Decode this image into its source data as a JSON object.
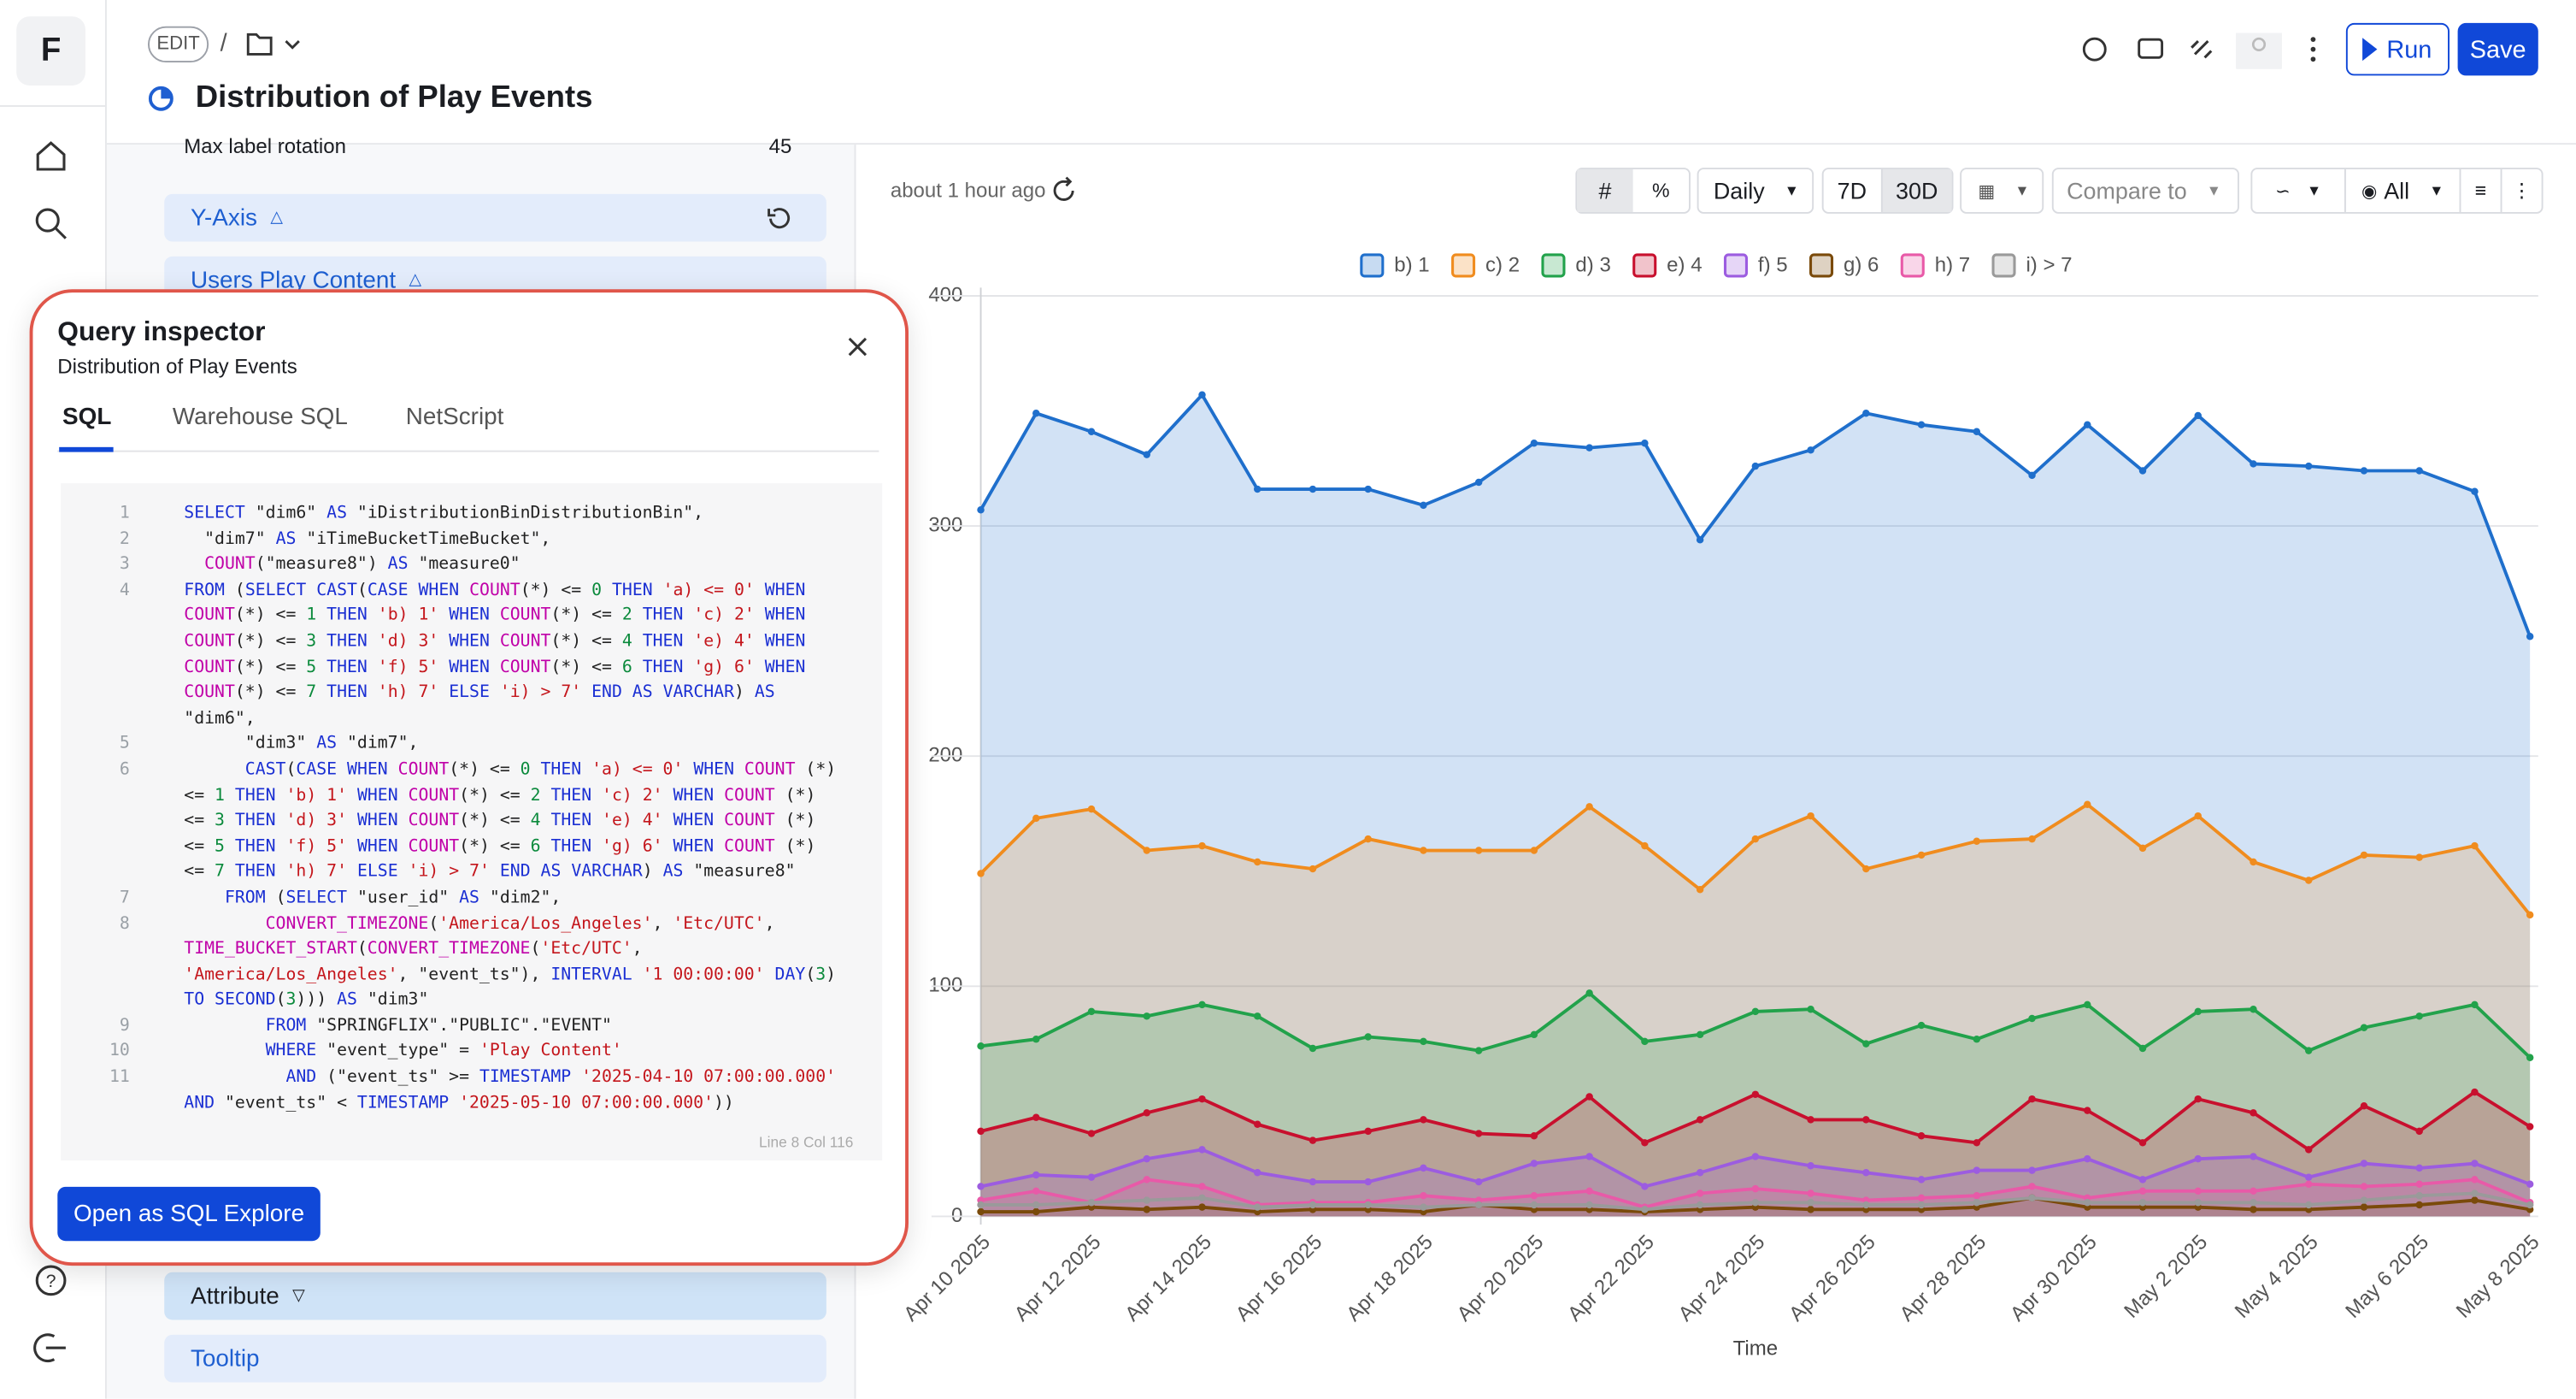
{
  "sidebar": {
    "logo": "F"
  },
  "header": {
    "mode": "EDIT",
    "separator": "/",
    "title": "Distribution of Play Events",
    "run": "Run",
    "save": "Save"
  },
  "panel": {
    "rotation_label": "Max label rotation",
    "rotation_value": 45,
    "sections": [
      "Y-Axis",
      "Users Play Content",
      "Attribute",
      "Tooltip"
    ]
  },
  "toolbar": {
    "updated": "about 1 hour ago",
    "granularity": "Daily",
    "ranges": [
      "7D",
      "30D"
    ],
    "compare": "Compare to",
    "visibility": "All"
  },
  "query_inspector": {
    "title": "Query inspector",
    "subtitle": "Distribution of Play Events",
    "tabs": [
      "SQL",
      "Warehouse SQL",
      "NetScript"
    ],
    "code": [
      {
        "line": 1,
        "text": "SELECT \"dim6\" AS \"iDistributionBinDistributionBin\","
      },
      {
        "line": 2,
        "text": "  \"dim7\" AS \"iTimeBucketTimeBucket\","
      },
      {
        "line": 3,
        "text": "  COUNT(\"measure8\") AS \"measure0\""
      },
      {
        "line": 4,
        "text": "FROM (SELECT CAST(CASE WHEN COUNT(*) <= 0 THEN 'a) <= 0' WHEN COUNT(*) <= 1 THEN 'b) 1' WHEN COUNT(*) <= 2 THEN 'c) 2' WHEN COUNT(*) <= 3 THEN 'd) 3' WHEN COUNT(*) <= 4 THEN 'e) 4' WHEN COUNT(*) <= 5 THEN 'f) 5' WHEN COUNT(*) <= 6 THEN 'g) 6' WHEN COUNT(*) <= 7 THEN 'h) 7' ELSE 'i) > 7' END AS VARCHAR) AS \"dim6\","
      },
      {
        "line": 5,
        "text": "      \"dim3\" AS \"dim7\","
      },
      {
        "line": 6,
        "text": "      CAST(CASE WHEN COUNT(*) <= 0 THEN 'a) <= 0' WHEN COUNT (*) <= 1 THEN 'b) 1' WHEN COUNT(*) <= 2 THEN 'c) 2' WHEN COUNT (*) <= 3 THEN 'd) 3' WHEN COUNT(*) <= 4 THEN 'e) 4' WHEN COUNT (*) <= 5 THEN 'f) 5' WHEN COUNT(*) <= 6 THEN 'g) 6' WHEN COUNT (*) <= 7 THEN 'h) 7' ELSE 'i) > 7' END AS VARCHAR) AS \"measure8\""
      },
      {
        "line": 7,
        "text": "    FROM (SELECT \"user_id\" AS \"dim2\","
      },
      {
        "line": 8,
        "text": "        CONVERT_TIMEZONE('America/Los_Angeles', 'Etc/UTC', TIME_BUCKET_START(CONVERT_TIMEZONE('Etc/UTC', 'America/Los_Angeles', \"event_ts\"), INTERVAL '1 00:00:00' DAY(3) TO SECOND(3))) AS \"dim3\""
      },
      {
        "line": 9,
        "text": "        FROM \"SPRINGFLIX\".\"PUBLIC\".\"EVENT\""
      },
      {
        "line": 10,
        "text": "        WHERE \"event_type\" = 'Play Content'"
      },
      {
        "line": 11,
        "text": "          AND (\"event_ts\" >= TIMESTAMP '2025-04-10 07:00:00.000' AND \"event_ts\" < TIMESTAMP '2025-05-10 07:00:00.000'))"
      }
    ],
    "cursor": "Line 8 Col 116",
    "button": "Open as SQL Explore"
  },
  "chart_data": {
    "type": "area",
    "xlabel": "Time",
    "categories": [
      "Apr 10 2025",
      null,
      "Apr 12 2025",
      null,
      "Apr 14 2025",
      null,
      "Apr 16 2025",
      null,
      "Apr 18 2025",
      null,
      "Apr 20 2025",
      null,
      "Apr 22 2025",
      null,
      "Apr 24 2025",
      null,
      "Apr 26 2025",
      null,
      "Apr 28 2025",
      null,
      "Apr 30 2025",
      null,
      "May 2 2025",
      null,
      "May 4 2025",
      null,
      "May 6 2025",
      null,
      "May 8 2025"
    ],
    "ylim": [
      0,
      400
    ],
    "yticks": [
      0,
      100,
      200,
      300,
      400
    ],
    "grid": true,
    "legend": "top",
    "series": [
      {
        "name": "b) 1",
        "color": "#1f6fcc",
        "values": [
          307,
          349,
          341,
          331,
          357,
          316,
          316,
          316,
          309,
          319,
          336,
          334,
          336,
          294,
          326,
          333,
          349,
          344,
          341,
          322,
          344,
          324,
          348,
          327,
          326,
          324,
          324,
          315,
          252
        ]
      },
      {
        "name": "c) 2",
        "color": "#f08c1e",
        "values": [
          149,
          173,
          177,
          159,
          161,
          154,
          151,
          164,
          159,
          159,
          159,
          178,
          161,
          142,
          164,
          174,
          151,
          157,
          163,
          164,
          179,
          160,
          174,
          154,
          146,
          157,
          156,
          161,
          131
        ]
      },
      {
        "name": "d) 3",
        "color": "#22a24b",
        "values": [
          74,
          77,
          89,
          87,
          92,
          87,
          73,
          78,
          76,
          72,
          79,
          97,
          76,
          79,
          89,
          90,
          75,
          83,
          77,
          86,
          92,
          73,
          89,
          90,
          72,
          82,
          87,
          92,
          69
        ]
      },
      {
        "name": "e) 4",
        "color": "#c8102e",
        "values": [
          37,
          43,
          36,
          45,
          51,
          40,
          33,
          37,
          42,
          36,
          35,
          52,
          32,
          42,
          53,
          42,
          42,
          35,
          32,
          51,
          46,
          32,
          51,
          45,
          29,
          48,
          37,
          54,
          39
        ]
      },
      {
        "name": "f) 5",
        "color": "#9c5ce0",
        "values": [
          13,
          18,
          17,
          25,
          29,
          19,
          15,
          15,
          21,
          15,
          23,
          26,
          13,
          19,
          26,
          22,
          19,
          16,
          20,
          20,
          25,
          16,
          25,
          26,
          17,
          23,
          21,
          23,
          14
        ]
      },
      {
        "name": "g) 6",
        "color": "#7a4a0a",
        "values": [
          2,
          2,
          4,
          3,
          4,
          2,
          3,
          3,
          2,
          5,
          3,
          3,
          2,
          3,
          4,
          3,
          3,
          3,
          4,
          8,
          4,
          4,
          4,
          3,
          3,
          4,
          5,
          7,
          3
        ]
      },
      {
        "name": "h) 7",
        "color": "#e85aa8",
        "values": [
          7,
          11,
          6,
          16,
          13,
          5,
          6,
          6,
          9,
          7,
          9,
          11,
          4,
          10,
          12,
          10,
          7,
          8,
          9,
          13,
          8,
          11,
          11,
          11,
          14,
          13,
          14,
          16,
          6
        ]
      },
      {
        "name": "i) > 7",
        "color": "#9a9a9a",
        "values": [
          5,
          5,
          6,
          7,
          8,
          4,
          5,
          5,
          4,
          5,
          5,
          5,
          3,
          5,
          6,
          6,
          5,
          5,
          6,
          8,
          6,
          6,
          6,
          6,
          5,
          7,
          9,
          10,
          5
        ]
      }
    ]
  }
}
